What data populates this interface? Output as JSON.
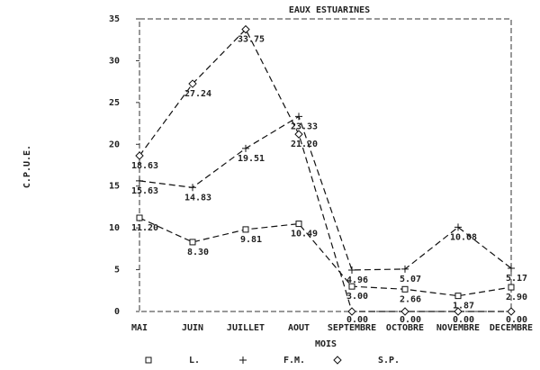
{
  "chart_data": {
    "type": "line",
    "title": "EAUX ESTUARINES",
    "x_label": "MOIS",
    "y_label": "C.P.U.E.",
    "categories": [
      "MAI",
      "JUIN",
      "JUILLET",
      "AOUT",
      "SEPTEMBRE",
      "OCTOBRE",
      "NOVEMBRE",
      "DECEMBRE"
    ],
    "series": [
      {
        "name": "L.",
        "color": "#111111",
        "marker": "square",
        "values": [
          11.2,
          8.3,
          9.81,
          10.49,
          3.0,
          2.66,
          1.87,
          2.9
        ],
        "value_labels": [
          "11.20",
          "8.30",
          "9.81",
          "10.49",
          "3.00",
          "2.66",
          "1.87",
          "2.90"
        ]
      },
      {
        "name": "F.M.",
        "color": "#111111",
        "marker": "plus",
        "values": [
          15.63,
          14.83,
          19.51,
          23.33,
          4.96,
          5.07,
          10.08,
          5.17
        ],
        "value_labels": [
          "15.63",
          "14.83",
          "19.51",
          "23.33",
          "4.96",
          "5.07",
          "10.08",
          "5.17"
        ]
      },
      {
        "name": "S.P.",
        "color": "#111111",
        "marker": "diamond",
        "values": [
          18.63,
          27.24,
          33.75,
          21.2,
          0,
          0,
          0,
          0
        ],
        "value_labels": [
          "18.63",
          "27.24",
          "33.75",
          "21.20",
          "0.00",
          "0.00",
          "0.00",
          "0.00"
        ]
      }
    ],
    "ylim": [
      0,
      35
    ],
    "yticks": [
      0,
      5,
      10,
      15,
      20,
      25,
      30,
      35
    ],
    "grid": false
  }
}
